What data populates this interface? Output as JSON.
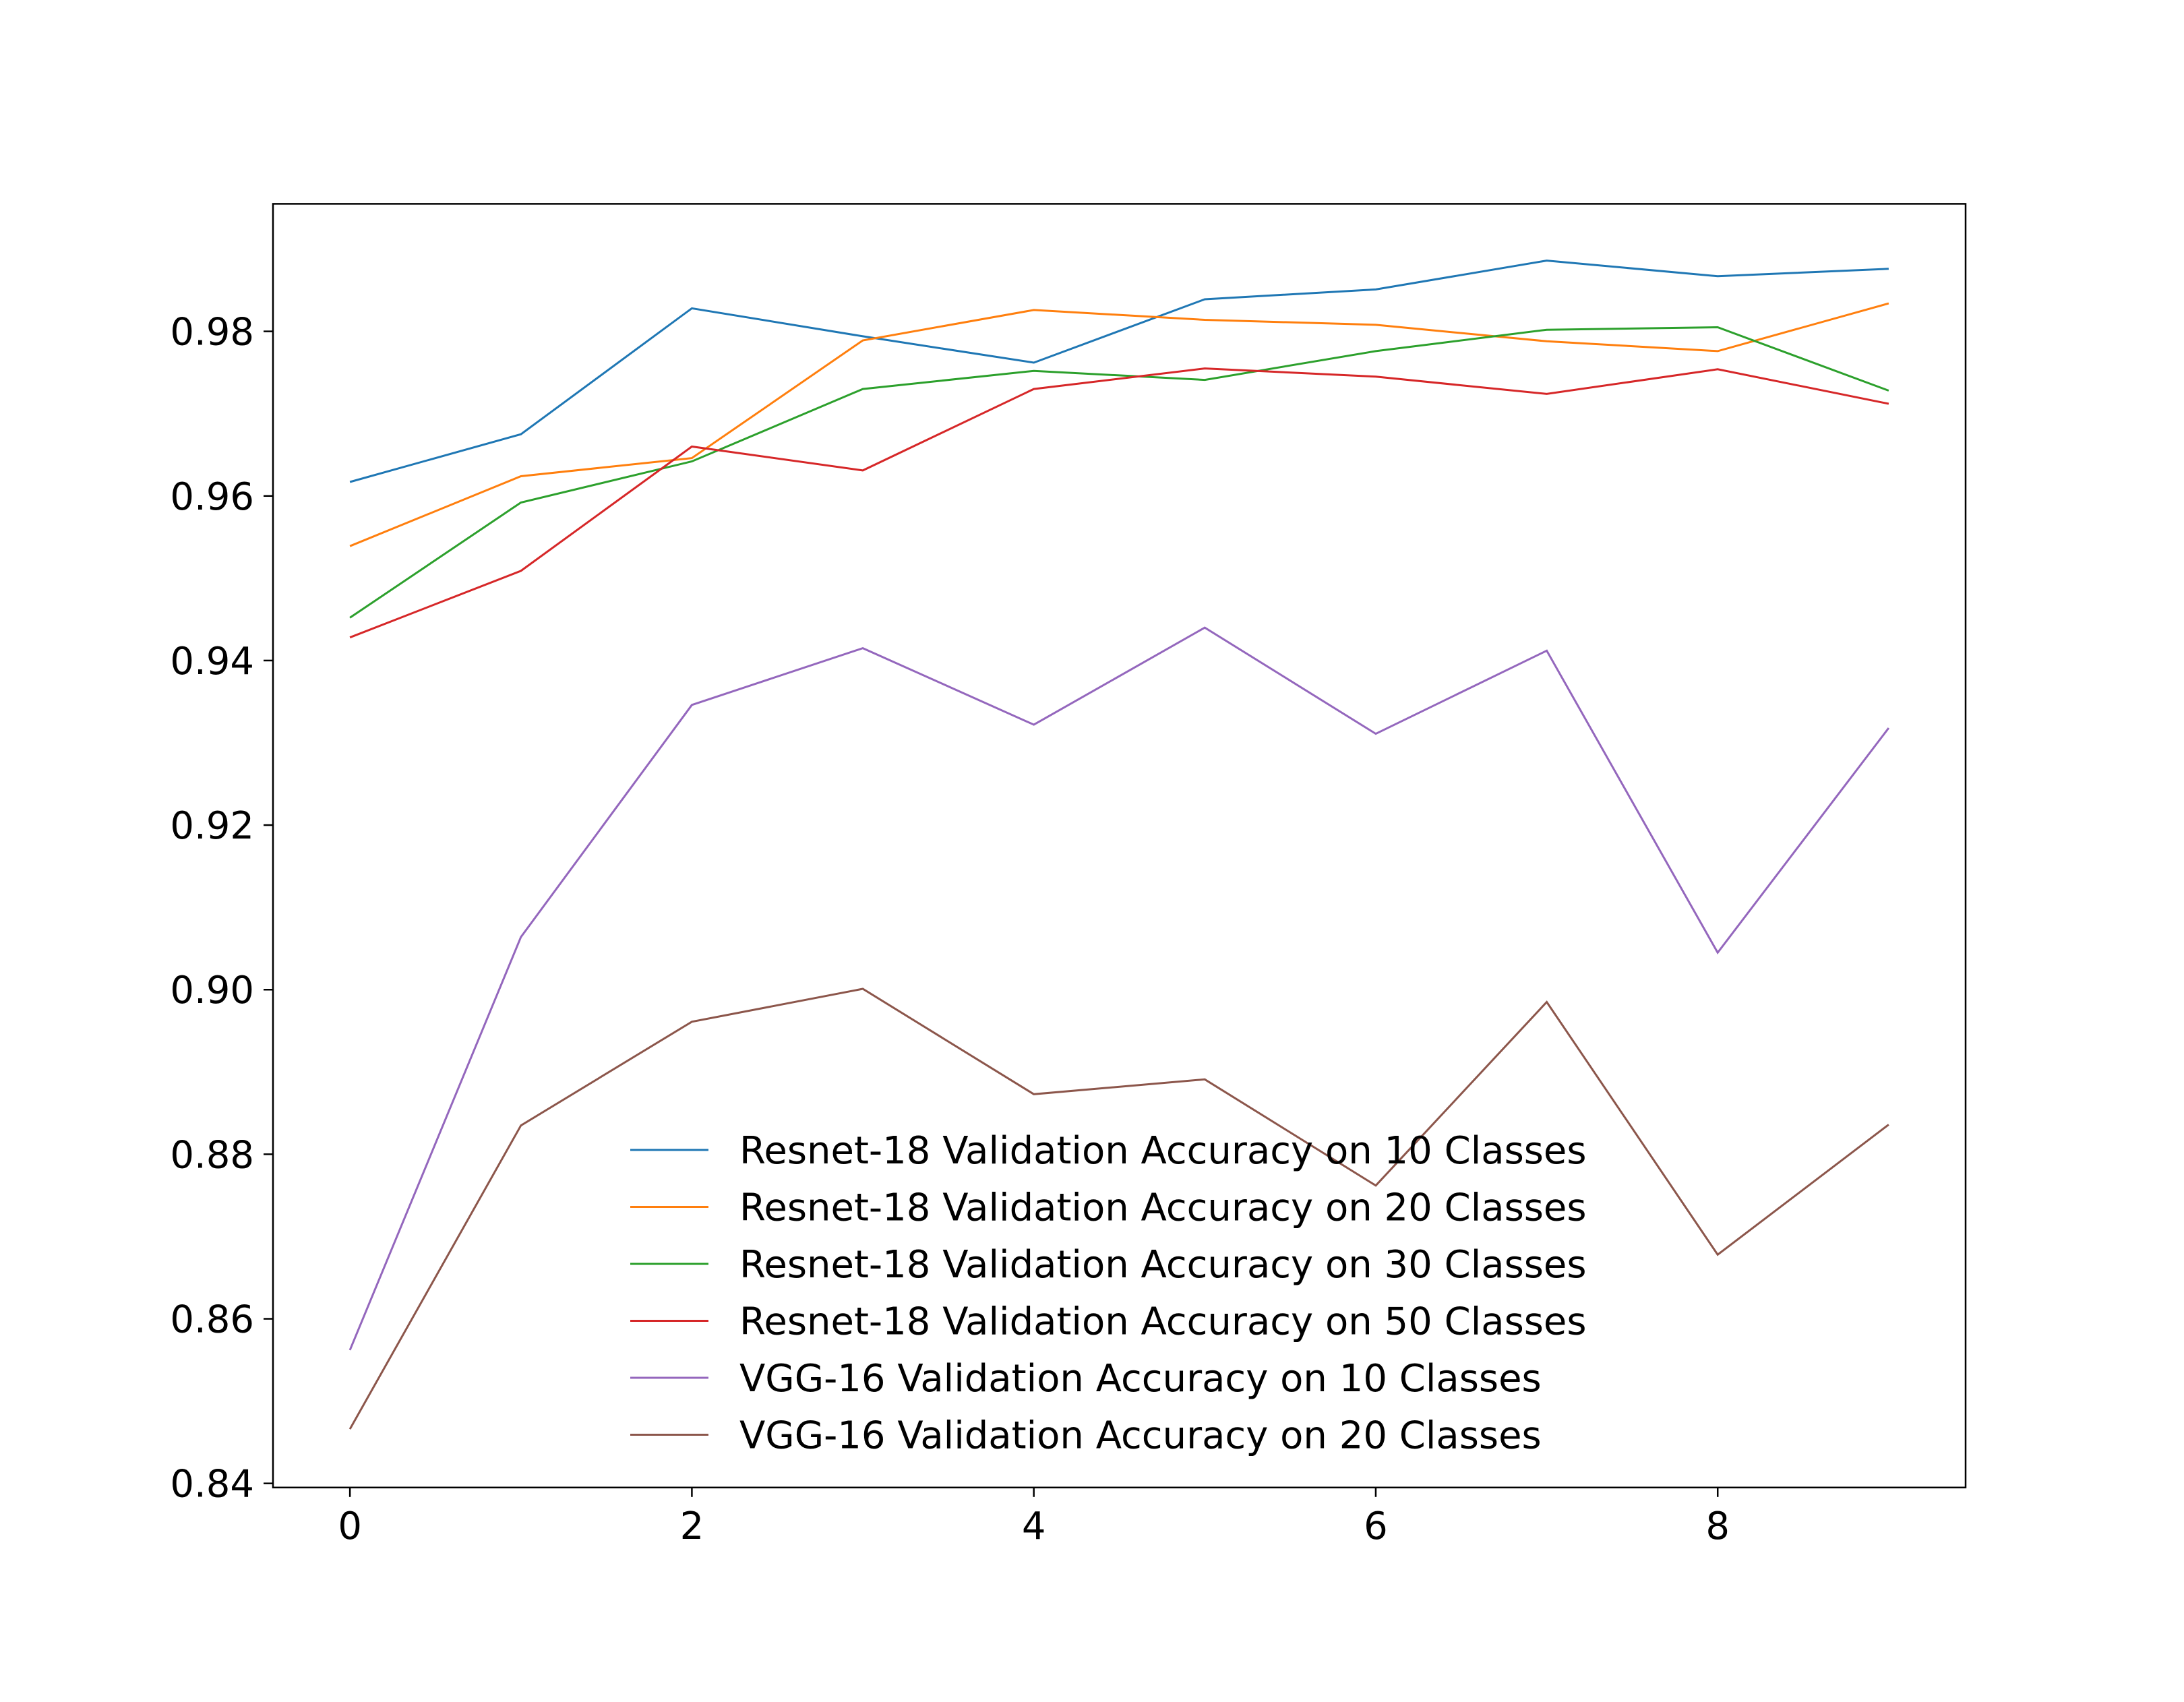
{
  "chart_data": {
    "type": "line",
    "title": "",
    "xlabel": "",
    "ylabel": "",
    "xlim": [
      -0.45,
      9.45
    ],
    "ylim": [
      0.8395,
      0.9955
    ],
    "x_ticks": [
      0,
      2,
      4,
      6,
      8
    ],
    "x_tick_labels": [
      "0",
      "2",
      "4",
      "6",
      "8"
    ],
    "y_ticks": [
      0.84,
      0.86,
      0.88,
      0.9,
      0.92,
      0.94,
      0.96,
      0.98
    ],
    "y_tick_labels": [
      "0.84",
      "0.86",
      "0.88",
      "0.90",
      "0.92",
      "0.94",
      "0.96",
      "0.98"
    ],
    "grid": false,
    "legend_position": "lower-center",
    "x": [
      0,
      1,
      2,
      3,
      4,
      5,
      6,
      7,
      8,
      9
    ],
    "series": [
      {
        "name": "Resnet-18 Validation Accuracy on 10 Classes",
        "color": "#1f77b4",
        "values": [
          0.9617,
          0.9675,
          0.9828,
          0.9794,
          0.9762,
          0.9839,
          0.9851,
          0.9886,
          0.9867,
          0.9876
        ]
      },
      {
        "name": "Resnet-18 Validation Accuracy on 20 Classes",
        "color": "#ff7f0e",
        "values": [
          0.9539,
          0.9624,
          0.9646,
          0.9789,
          0.9826,
          0.9814,
          0.9808,
          0.9788,
          0.9776,
          0.9834
        ]
      },
      {
        "name": "Resnet-18 Validation Accuracy on 30 Classes",
        "color": "#2ca02c",
        "values": [
          0.9452,
          0.9592,
          0.9642,
          0.973,
          0.9752,
          0.9741,
          0.9776,
          0.9802,
          0.9805,
          0.9728
        ]
      },
      {
        "name": "Resnet-18 Validation Accuracy on 50 Classes",
        "color": "#d62728",
        "values": [
          0.9428,
          0.9509,
          0.966,
          0.9631,
          0.973,
          0.9755,
          0.9745,
          0.9724,
          0.9754,
          0.9712
        ]
      },
      {
        "name": "VGG-16 Validation Accuracy on 10 Classes",
        "color": "#9467bd",
        "values": [
          0.8562,
          0.9064,
          0.9346,
          0.9415,
          0.9322,
          0.944,
          0.9311,
          0.9412,
          0.9045,
          0.9318
        ]
      },
      {
        "name": "VGG-16 Validation Accuracy on 20 Classes",
        "color": "#8c564b",
        "values": [
          0.8466,
          0.8835,
          0.8961,
          0.9001,
          0.8873,
          0.8891,
          0.8762,
          0.8985,
          0.8678,
          0.8836
        ]
      }
    ]
  }
}
